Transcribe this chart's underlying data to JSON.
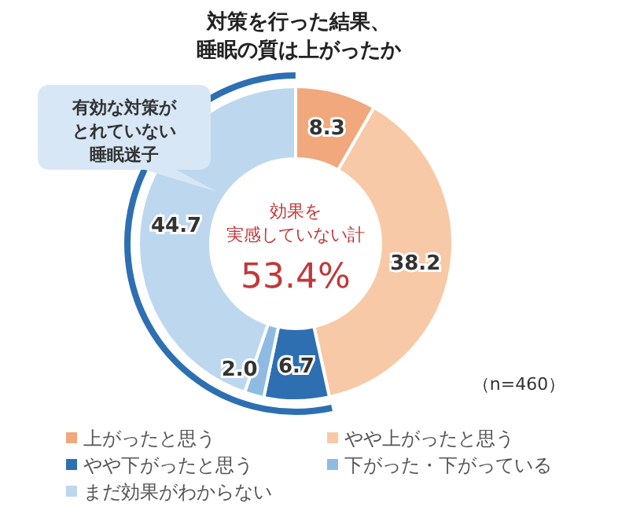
{
  "chart_data": {
    "type": "donut",
    "title": "対策を行った結果、睡眠の質は上がったか",
    "categories": [
      "上がったと思う",
      "やや上がったと思う",
      "やや下がったと思う",
      "下がった・下がっている",
      "まだ効果がわからない"
    ],
    "values": [
      8.3,
      38.2,
      6.7,
      2.0,
      44.7
    ],
    "colors": [
      "#f0a87c",
      "#f8c9a6",
      "#2e6fb2",
      "#8fbbe3",
      "#bdd7ef"
    ],
    "value_labels": [
      "8.3",
      "38.2",
      "6.7",
      "2.0",
      "44.7"
    ],
    "legend": "bottom",
    "annotations": [
      "有効な対策がとれていない睡眠迷子",
      "効果を実感していない計",
      "53.4%",
      "（n=460）"
    ]
  }
}
